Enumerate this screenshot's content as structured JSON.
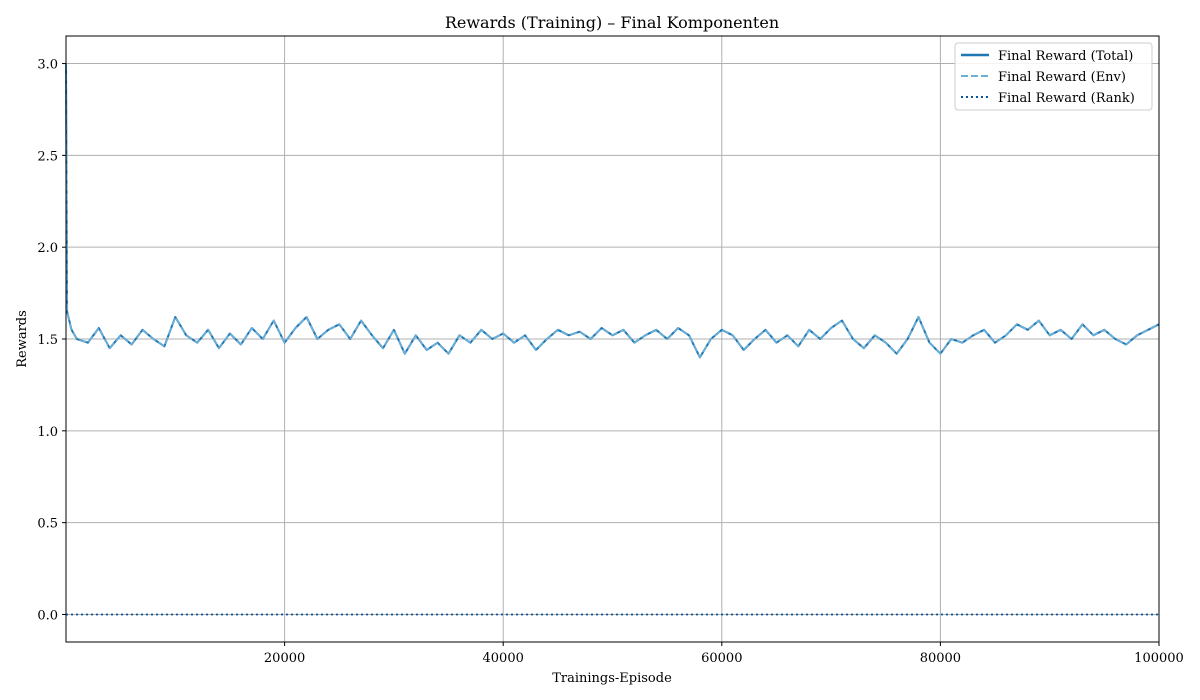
{
  "chart_data": {
    "type": "line",
    "title": "Rewards (Training) – Final Komponenten",
    "xlabel": "Trainings-Episode",
    "ylabel": "Rewards",
    "xlim": [
      0,
      100000
    ],
    "ylim": [
      -0.15,
      3.15
    ],
    "xticks": [
      20000,
      40000,
      60000,
      80000,
      100000
    ],
    "xtick_labels": [
      "20000",
      "40000",
      "60000",
      "80000",
      "100000"
    ],
    "yticks": [
      0.0,
      0.5,
      1.0,
      1.5,
      2.0,
      2.5,
      3.0
    ],
    "ytick_labels": [
      "0.0",
      "0.5",
      "1.0",
      "1.5",
      "2.0",
      "2.5",
      "3.0"
    ],
    "grid": true,
    "legend_position": "top-right",
    "series": [
      {
        "name": "Final Reward (Total)",
        "color": "#1f77b4",
        "style": "solid",
        "x": [
          0,
          100,
          500,
          1000,
          2000,
          3000,
          4000,
          5000,
          6000,
          7000,
          8000,
          9000,
          10000,
          11000,
          12000,
          13000,
          14000,
          15000,
          16000,
          17000,
          18000,
          19000,
          20000,
          21000,
          22000,
          23000,
          24000,
          25000,
          26000,
          27000,
          28000,
          29000,
          30000,
          31000,
          32000,
          33000,
          34000,
          35000,
          36000,
          37000,
          38000,
          39000,
          40000,
          41000,
          42000,
          43000,
          44000,
          45000,
          46000,
          47000,
          48000,
          49000,
          50000,
          51000,
          52000,
          53000,
          54000,
          55000,
          56000,
          57000,
          58000,
          59000,
          60000,
          61000,
          62000,
          63000,
          64000,
          65000,
          66000,
          67000,
          68000,
          69000,
          70000,
          71000,
          72000,
          73000,
          74000,
          75000,
          76000,
          77000,
          78000,
          79000,
          80000,
          81000,
          82000,
          83000,
          84000,
          85000,
          86000,
          87000,
          88000,
          89000,
          90000,
          91000,
          92000,
          93000,
          94000,
          95000,
          96000,
          97000,
          98000,
          99000,
          100000
        ],
        "y": [
          3.0,
          1.65,
          1.55,
          1.5,
          1.48,
          1.56,
          1.45,
          1.52,
          1.47,
          1.55,
          1.5,
          1.46,
          1.62,
          1.52,
          1.48,
          1.55,
          1.45,
          1.53,
          1.47,
          1.56,
          1.5,
          1.6,
          1.48,
          1.56,
          1.62,
          1.5,
          1.55,
          1.58,
          1.5,
          1.6,
          1.52,
          1.45,
          1.55,
          1.42,
          1.52,
          1.44,
          1.48,
          1.42,
          1.52,
          1.48,
          1.55,
          1.5,
          1.53,
          1.48,
          1.52,
          1.44,
          1.5,
          1.55,
          1.52,
          1.54,
          1.5,
          1.56,
          1.52,
          1.55,
          1.48,
          1.52,
          1.55,
          1.5,
          1.56,
          1.52,
          1.4,
          1.5,
          1.55,
          1.52,
          1.44,
          1.5,
          1.55,
          1.48,
          1.52,
          1.46,
          1.55,
          1.5,
          1.56,
          1.6,
          1.5,
          1.45,
          1.52,
          1.48,
          1.42,
          1.5,
          1.62,
          1.48,
          1.42,
          1.5,
          1.48,
          1.52,
          1.55,
          1.48,
          1.52,
          1.58,
          1.55,
          1.6,
          1.52,
          1.55,
          1.5,
          1.58,
          1.52,
          1.55,
          1.5,
          1.47,
          1.52,
          1.55,
          1.58
        ]
      },
      {
        "name": "Final Reward (Env)",
        "color": "#6baed6",
        "style": "dashed",
        "x": [
          0,
          100,
          500,
          1000,
          2000,
          3000,
          4000,
          5000,
          6000,
          7000,
          8000,
          9000,
          10000,
          11000,
          12000,
          13000,
          14000,
          15000,
          16000,
          17000,
          18000,
          19000,
          20000,
          21000,
          22000,
          23000,
          24000,
          25000,
          26000,
          27000,
          28000,
          29000,
          30000,
          31000,
          32000,
          33000,
          34000,
          35000,
          36000,
          37000,
          38000,
          39000,
          40000,
          41000,
          42000,
          43000,
          44000,
          45000,
          46000,
          47000,
          48000,
          49000,
          50000,
          51000,
          52000,
          53000,
          54000,
          55000,
          56000,
          57000,
          58000,
          59000,
          60000,
          61000,
          62000,
          63000,
          64000,
          65000,
          66000,
          67000,
          68000,
          69000,
          70000,
          71000,
          72000,
          73000,
          74000,
          75000,
          76000,
          77000,
          78000,
          79000,
          80000,
          81000,
          82000,
          83000,
          84000,
          85000,
          86000,
          87000,
          88000,
          89000,
          90000,
          91000,
          92000,
          93000,
          94000,
          95000,
          96000,
          97000,
          98000,
          99000,
          100000
        ],
        "y": [
          3.0,
          1.65,
          1.55,
          1.5,
          1.48,
          1.56,
          1.45,
          1.52,
          1.47,
          1.55,
          1.5,
          1.46,
          1.62,
          1.52,
          1.48,
          1.55,
          1.45,
          1.53,
          1.47,
          1.56,
          1.5,
          1.6,
          1.48,
          1.56,
          1.62,
          1.5,
          1.55,
          1.58,
          1.5,
          1.6,
          1.52,
          1.45,
          1.55,
          1.42,
          1.52,
          1.44,
          1.48,
          1.42,
          1.52,
          1.48,
          1.55,
          1.5,
          1.53,
          1.48,
          1.52,
          1.44,
          1.5,
          1.55,
          1.52,
          1.54,
          1.5,
          1.56,
          1.52,
          1.55,
          1.48,
          1.52,
          1.55,
          1.5,
          1.56,
          1.52,
          1.4,
          1.5,
          1.55,
          1.52,
          1.44,
          1.5,
          1.55,
          1.48,
          1.52,
          1.46,
          1.55,
          1.5,
          1.56,
          1.6,
          1.5,
          1.45,
          1.52,
          1.48,
          1.42,
          1.5,
          1.62,
          1.48,
          1.42,
          1.5,
          1.48,
          1.52,
          1.55,
          1.48,
          1.52,
          1.58,
          1.55,
          1.6,
          1.52,
          1.55,
          1.5,
          1.58,
          1.52,
          1.55,
          1.5,
          1.47,
          1.52,
          1.55,
          1.58
        ]
      },
      {
        "name": "Final Reward (Rank)",
        "color": "#08519c",
        "style": "dotted",
        "x": [
          0,
          100000
        ],
        "y": [
          0.0,
          0.0
        ]
      }
    ]
  }
}
